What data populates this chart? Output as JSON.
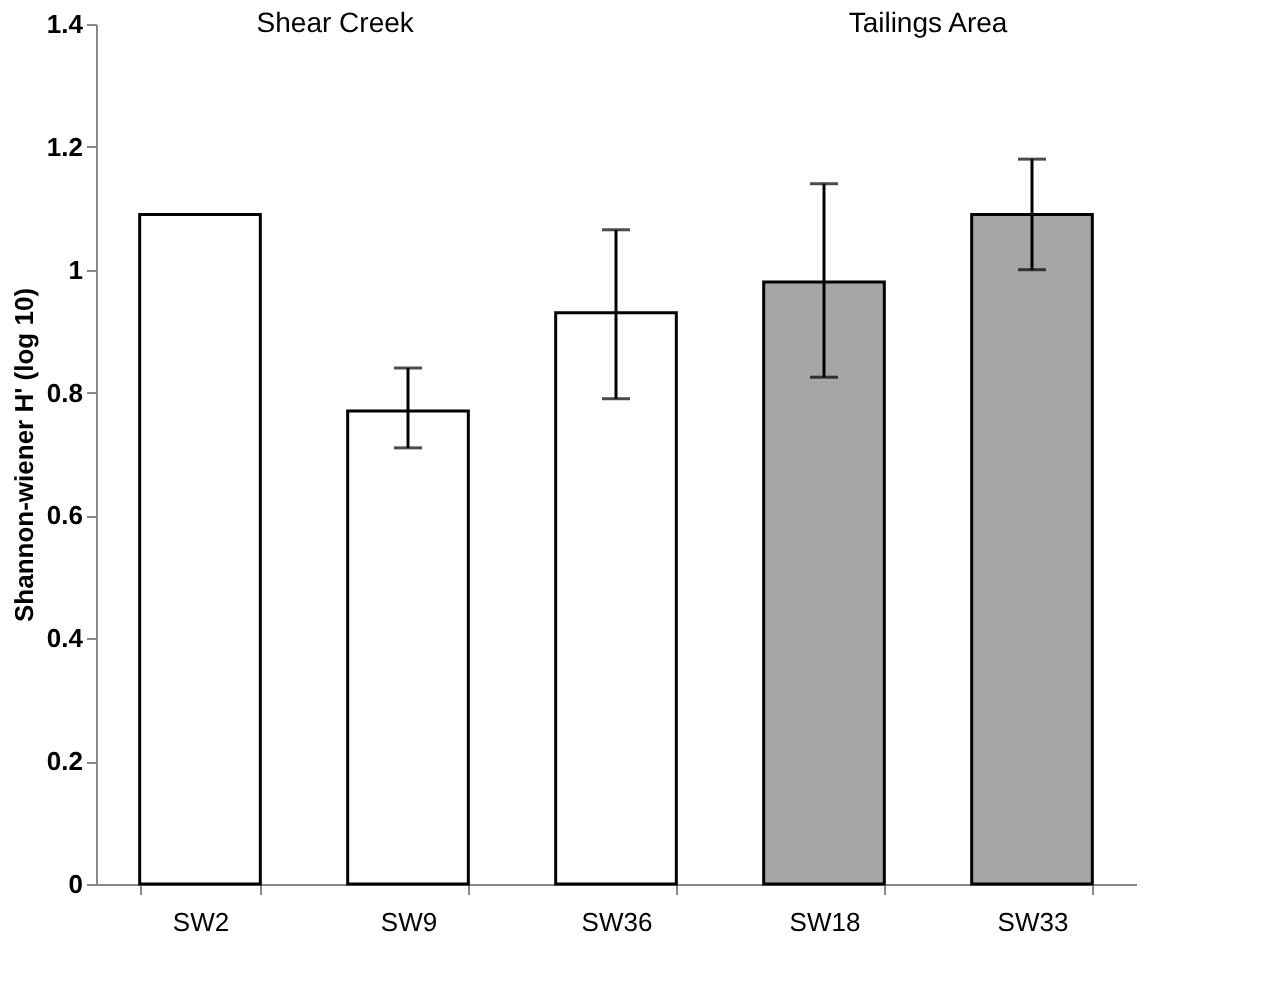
{
  "chart_data": {
    "type": "bar",
    "ylabel": "Shannon-wiener H' (log 10)",
    "categories": [
      "SW2",
      "SW9",
      "SW36",
      "SW18",
      "SW33"
    ],
    "values": [
      1.09,
      0.77,
      0.93,
      0.98,
      1.09
    ],
    "errors": [
      null,
      [
        0.71,
        0.84
      ],
      [
        0.79,
        1.065
      ],
      [
        0.825,
        1.14
      ],
      [
        1.0,
        1.18
      ]
    ],
    "colors": [
      "#ffffff",
      "#ffffff",
      "#ffffff",
      "#a6a6a6",
      "#a6a6a6"
    ],
    "ylim": [
      0,
      1.4
    ],
    "yticks": [
      0,
      0.2,
      0.4,
      0.6,
      0.8,
      1,
      1.2,
      1.4
    ],
    "annotations": [
      "Shear Creek",
      "Tailings Area"
    ],
    "grid": false
  }
}
